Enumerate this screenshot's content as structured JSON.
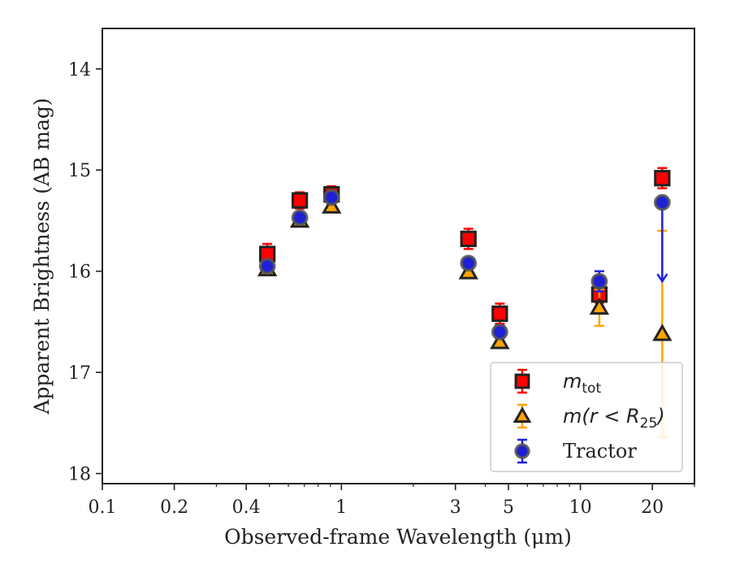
{
  "chart_data": {
    "type": "scatter",
    "title": "",
    "xlabel": "Observed-frame Wavelength (μm)",
    "ylabel": "Apparent Brightness (AB mag)",
    "xscale": "log",
    "xlim": [
      0.1,
      30
    ],
    "ylim": [
      18.1,
      13.6
    ],
    "y_inverted": true,
    "grid": false,
    "legend_position": "lower-right",
    "x_ticks": [
      {
        "value": 0.1,
        "label": "0.1"
      },
      {
        "value": 0.2,
        "label": "0.2"
      },
      {
        "value": 0.4,
        "label": "0.4"
      },
      {
        "value": 1,
        "label": "1"
      },
      {
        "value": 3,
        "label": "3"
      },
      {
        "value": 5,
        "label": "5"
      },
      {
        "value": 10,
        "label": "10"
      },
      {
        "value": 20,
        "label": "20"
      }
    ],
    "y_ticks": [
      {
        "value": 14,
        "label": "14"
      },
      {
        "value": 15,
        "label": "15"
      },
      {
        "value": 16,
        "label": "16"
      },
      {
        "value": 17,
        "label": "17"
      },
      {
        "value": 18,
        "label": "18"
      }
    ],
    "series": [
      {
        "name": "m_tot",
        "legend_base": "m",
        "legend_sub": "tot",
        "legend_tail": "",
        "marker": "square",
        "color": "#ff0000",
        "edge": "#222222",
        "errcolor": "#ff0000",
        "points": [
          {
            "x": 0.49,
            "y": 15.83,
            "err": 0.1
          },
          {
            "x": 0.67,
            "y": 15.3,
            "err": 0.08
          },
          {
            "x": 0.91,
            "y": 15.24,
            "err": 0.08
          },
          {
            "x": 3.4,
            "y": 15.68,
            "err": 0.1
          },
          {
            "x": 4.6,
            "y": 16.42,
            "err": 0.1
          },
          {
            "x": 12,
            "y": 16.23,
            "err": 0.08
          },
          {
            "x": 22,
            "y": 15.08,
            "err": 0.1
          }
        ]
      },
      {
        "name": "m(r < R25)",
        "legend_base": "m(r < R",
        "legend_sub": "25",
        "legend_tail": ")",
        "marker": "triangle",
        "color": "#ffa500",
        "edge": "#222222",
        "errcolor": "#ffa500",
        "points": [
          {
            "x": 0.49,
            "y": 15.98,
            "err": 0.03
          },
          {
            "x": 0.67,
            "y": 15.5,
            "err": 0.03
          },
          {
            "x": 0.91,
            "y": 15.36,
            "err": 0.03
          },
          {
            "x": 3.4,
            "y": 16.01,
            "err": 0.04
          },
          {
            "x": 4.6,
            "y": 16.7,
            "err": 0.05
          },
          {
            "x": 12,
            "y": 16.36,
            "err": 0.18
          },
          {
            "x": 22,
            "y": 16.62,
            "err_low": 1.02,
            "err_high": 1.02
          }
        ]
      },
      {
        "name": "Tractor",
        "legend_base": "Tractor",
        "legend_sub": "",
        "legend_tail": "",
        "marker": "circle",
        "color": "#1f1fd6",
        "edge": "#555555",
        "errcolor": "#2020e0",
        "points": [
          {
            "x": 0.49,
            "y": 15.95,
            "err": 0.03
          },
          {
            "x": 0.67,
            "y": 15.47,
            "err": 0.03
          },
          {
            "x": 0.91,
            "y": 15.27,
            "err": 0.03
          },
          {
            "x": 3.4,
            "y": 15.92,
            "err": 0.05
          },
          {
            "x": 4.6,
            "y": 16.6,
            "err": 0.06
          },
          {
            "x": 12,
            "y": 16.1,
            "err": 0.1
          },
          {
            "x": 22,
            "y": 15.32,
            "upper_limit_to": 16.1
          }
        ]
      }
    ]
  }
}
